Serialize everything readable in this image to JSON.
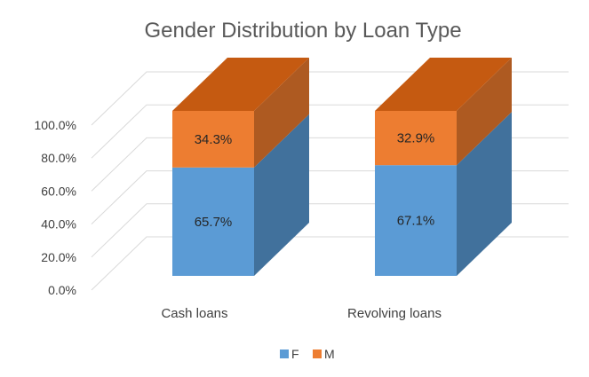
{
  "chart_data": {
    "type": "bar",
    "stacked": true,
    "three_d": true,
    "title": "Gender Distribution by Loan Type",
    "categories": [
      "Cash loans",
      "Revolving loans"
    ],
    "series": [
      {
        "name": "F",
        "values": [
          65.7,
          67.1
        ],
        "labels": [
          "65.7%",
          "67.1%"
        ],
        "color": "#5B9BD5"
      },
      {
        "name": "M",
        "values": [
          34.3,
          32.9
        ],
        "labels": [
          "34.3%",
          "32.9%"
        ],
        "color": "#ED7D31"
      }
    ],
    "yticks": [
      "0.0%",
      "20.0%",
      "40.0%",
      "60.0%",
      "80.0%",
      "100.0%"
    ],
    "ylim": [
      0,
      100
    ],
    "grid": true,
    "legend": "bottom"
  }
}
